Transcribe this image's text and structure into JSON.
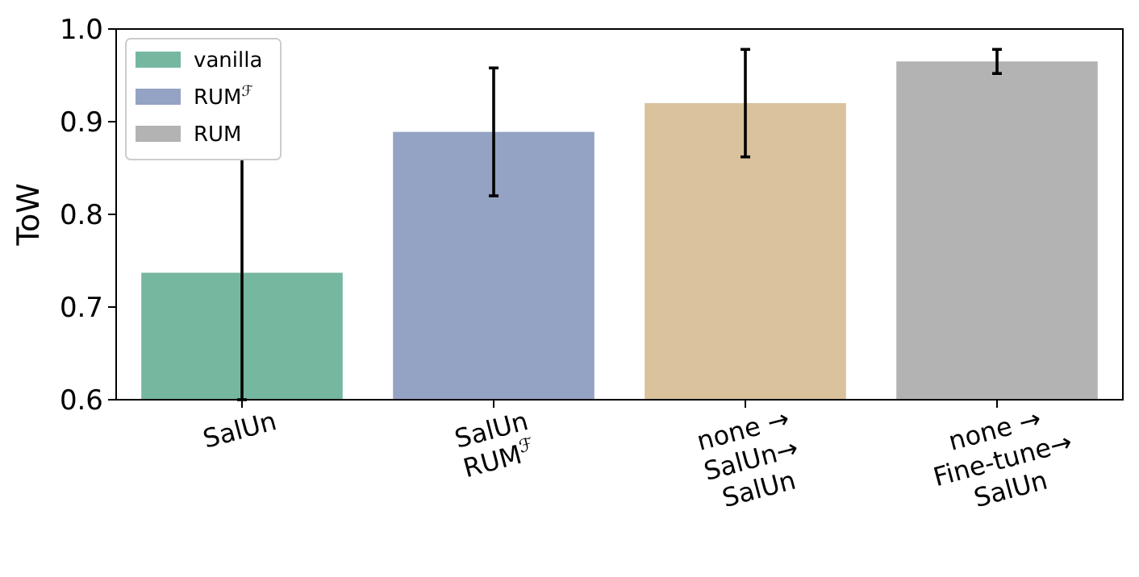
{
  "chart_data": {
    "type": "bar",
    "ylabel": "ToW",
    "categories": [
      "SalUn",
      "SalUn\nRUM$^{ℱ}$",
      "none →\nSalUn→\nSalUn",
      "none →\nFine-tune→\nSalUn"
    ],
    "series": [
      {
        "name": "vanilla",
        "color": "#76b7a0",
        "values": [
          0.737,
          null,
          null,
          null
        ],
        "errors": [
          0.137,
          null,
          null,
          null
        ]
      },
      {
        "name": "RUM$^{ℱ}$",
        "color": "#94a3c3",
        "values": [
          null,
          0.889,
          null,
          null
        ],
        "errors": [
          null,
          0.069,
          null,
          null
        ]
      },
      {
        "color": "#d9c29c",
        "values": [
          null,
          null,
          0.92,
          null
        ],
        "errors": [
          null,
          null,
          0.058,
          null
        ]
      },
      {
        "name": "RUM",
        "color": "#b3b3b3",
        "values": [
          null,
          null,
          null,
          0.965
        ],
        "errors": [
          null,
          null,
          null,
          0.013
        ]
      }
    ],
    "ylim": [
      0.6,
      1.0
    ],
    "yticks": [
      {
        "value": 0.6,
        "label": "0.6"
      },
      {
        "value": 0.7,
        "label": "0.7"
      },
      {
        "value": 0.8,
        "label": "0.8"
      },
      {
        "value": 0.9,
        "label": "0.9"
      },
      {
        "value": 1.0,
        "label": "1.0"
      }
    ],
    "legend": "top left",
    "grid": false
  }
}
